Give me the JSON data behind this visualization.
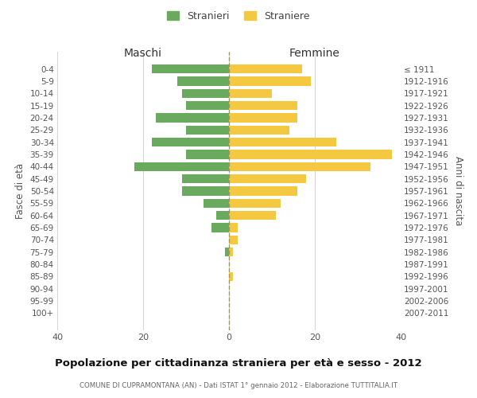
{
  "age_groups": [
    "0-4",
    "5-9",
    "10-14",
    "15-19",
    "20-24",
    "25-29",
    "30-34",
    "35-39",
    "40-44",
    "45-49",
    "50-54",
    "55-59",
    "60-64",
    "65-69",
    "70-74",
    "75-79",
    "80-84",
    "85-89",
    "90-94",
    "95-99",
    "100+"
  ],
  "birth_years": [
    "2007-2011",
    "2002-2006",
    "1997-2001",
    "1992-1996",
    "1987-1991",
    "1982-1986",
    "1977-1981",
    "1972-1976",
    "1967-1971",
    "1962-1966",
    "1957-1961",
    "1952-1956",
    "1947-1951",
    "1942-1946",
    "1937-1941",
    "1932-1936",
    "1927-1931",
    "1922-1926",
    "1917-1921",
    "1912-1916",
    "≤ 1911"
  ],
  "maschi": [
    18,
    12,
    11,
    10,
    17,
    10,
    18,
    10,
    22,
    11,
    11,
    6,
    3,
    4,
    0,
    1,
    0,
    0,
    0,
    0,
    0
  ],
  "femmine": [
    17,
    19,
    10,
    16,
    16,
    14,
    25,
    38,
    33,
    18,
    16,
    12,
    11,
    2,
    2,
    1,
    0,
    1,
    0,
    0,
    0
  ],
  "maschi_color": "#6aaa5e",
  "femmine_color": "#f5c842",
  "background_color": "#ffffff",
  "grid_color": "#cccccc",
  "title": "Popolazione per cittadinanza straniera per età e sesso - 2012",
  "subtitle": "COMUNE DI CUPRAMONTANA (AN) - Dati ISTAT 1° gennaio 2012 - Elaborazione TUTTITALIA.IT",
  "xlabel_left": "Maschi",
  "xlabel_right": "Femmine",
  "ylabel_left": "Fasce di età",
  "ylabel_right": "Anni di nascita",
  "legend_maschi": "Stranieri",
  "legend_femmine": "Straniere",
  "xlim": 40,
  "bar_height": 0.75
}
